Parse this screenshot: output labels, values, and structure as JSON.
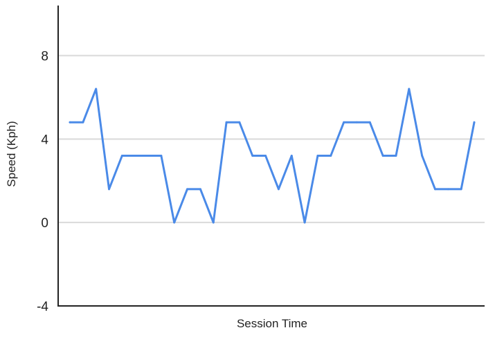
{
  "chart_data": {
    "type": "line",
    "title": "",
    "xlabel": "Session Time",
    "ylabel": "Speed (Kph)",
    "ylim": [
      -4,
      10.4
    ],
    "yticks": [
      -4,
      0,
      4,
      8
    ],
    "gridlines": true,
    "legend": "none",
    "colors": {
      "line": "#4a8ae8",
      "grid": "#d9d9d9",
      "axis": "#222222"
    },
    "series": [
      {
        "values": [
          4.8,
          4.8,
          6.4,
          1.6,
          3.2,
          3.2,
          3.2,
          3.2,
          0,
          1.6,
          1.6,
          0,
          4.8,
          4.8,
          3.2,
          3.2,
          1.6,
          3.2,
          0,
          3.2,
          3.2,
          4.8,
          4.8,
          4.8,
          3.2,
          3.2,
          6.4,
          3.2,
          1.6,
          1.6,
          1.6,
          4.8
        ]
      }
    ]
  }
}
